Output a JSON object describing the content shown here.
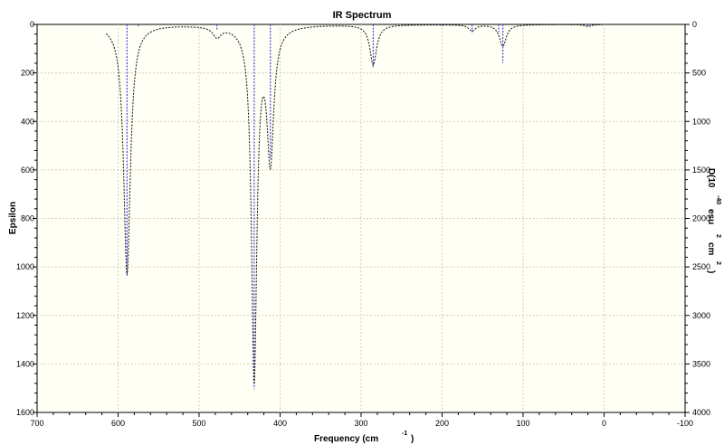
{
  "chart_data": {
    "type": "line",
    "title": "IR Spectrum",
    "xlabel": "Frequency (cm",
    "xlabel_sup": "-1",
    "xlabel_end": ")",
    "ylabel_left": "Epsilon",
    "ylabel_right_parts": [
      "D",
      "(10",
      "-40",
      "esu",
      "2",
      "cm",
      "2",
      ")"
    ],
    "xlim": [
      700,
      -100
    ],
    "ylim_left": [
      0,
      1600
    ],
    "ylim_right": [
      0,
      4000
    ],
    "x_ticks": [
      700,
      600,
      500,
      400,
      300,
      200,
      100,
      0,
      -100
    ],
    "y_left_ticks": [
      0,
      200,
      400,
      600,
      800,
      1000,
      1200,
      1400,
      1600
    ],
    "y_right_ticks": [
      0,
      500,
      1000,
      1500,
      2000,
      2500,
      3000,
      3500,
      4000
    ],
    "grid": true,
    "colors": {
      "plot_bg": "#fffff5",
      "grid": "#cfcfb0",
      "spectrum": "#111111",
      "sticks": "#4646e6"
    },
    "spectrum_peaks": [
      {
        "x": 589,
        "epsilon": 1030,
        "width": 5
      },
      {
        "x": 478,
        "epsilon": 42,
        "width": 6
      },
      {
        "x": 432,
        "epsilon": 1450,
        "width": 4
      },
      {
        "x": 412,
        "epsilon": 540,
        "width": 5
      },
      {
        "x": 285,
        "epsilon": 165,
        "width": 5
      },
      {
        "x": 163,
        "epsilon": 25,
        "width": 5
      },
      {
        "x": 125,
        "epsilon": 90,
        "width": 5
      },
      {
        "x": 20,
        "epsilon": 8,
        "width": 5
      }
    ],
    "spectrum_range": [
      615,
      0
    ],
    "sticks": [
      {
        "x": 589,
        "dipole": 2590
      },
      {
        "x": 575,
        "dipole": 30
      },
      {
        "x": 478,
        "dipole": 60
      },
      {
        "x": 432,
        "dipole": 3760
      },
      {
        "x": 412,
        "dipole": 1380
      },
      {
        "x": 285,
        "dipole": 440
      },
      {
        "x": 200,
        "dipole": 15
      },
      {
        "x": 163,
        "dipole": 80
      },
      {
        "x": 130,
        "dipole": 80
      },
      {
        "x": 125,
        "dipole": 400
      },
      {
        "x": 20,
        "dipole": 20
      }
    ]
  }
}
